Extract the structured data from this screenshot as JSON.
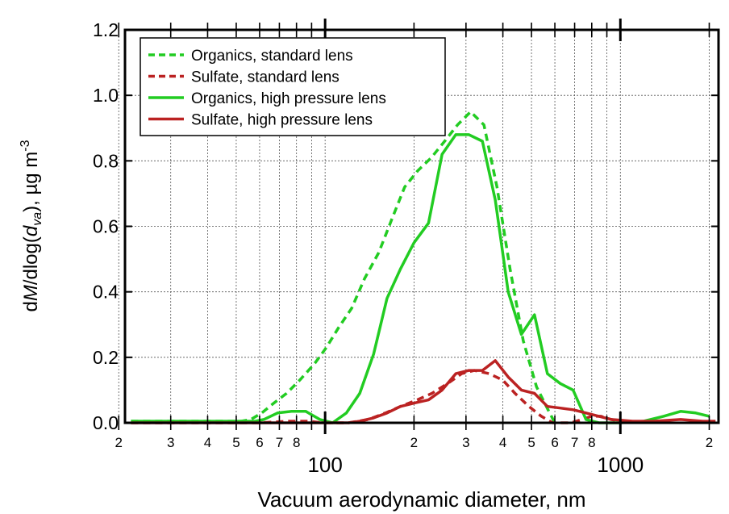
{
  "chart_data": {
    "type": "line",
    "x_scale": "log",
    "xlim": [
      21,
      2150
    ],
    "ylim": [
      0,
      1.2
    ],
    "grid": true,
    "legend_position": "top-left",
    "xlabel": "Vacuum aerodynamic diameter, nm",
    "ylabel": {
      "d1": "d",
      "M": "M",
      "mid": "/dlog(",
      "d2": "d",
      "sub": "va",
      "close": "), µg m",
      "sup": "-3"
    },
    "y_ticks": [
      {
        "value": 0.0,
        "label": "0.0"
      },
      {
        "value": 0.2,
        "label": "0.2"
      },
      {
        "value": 0.4,
        "label": "0.4"
      },
      {
        "value": 0.6,
        "label": "0.6"
      },
      {
        "value": 0.8,
        "label": "0.8"
      },
      {
        "value": 1.0,
        "label": "1.0"
      },
      {
        "value": 1.2,
        "label": "1.2"
      }
    ],
    "x_major_ticks": [
      {
        "value": 100,
        "label": "100"
      },
      {
        "value": 1000,
        "label": "1000"
      }
    ],
    "x_minor_ticks": [
      {
        "value": 20,
        "label": "2"
      },
      {
        "value": 30,
        "label": "3"
      },
      {
        "value": 40,
        "label": "4"
      },
      {
        "value": 50,
        "label": "5"
      },
      {
        "value": 60,
        "label": "6"
      },
      {
        "value": 70,
        "label": "7"
      },
      {
        "value": 80,
        "label": "8"
      },
      {
        "value": 200,
        "label": "2"
      },
      {
        "value": 300,
        "label": "3"
      },
      {
        "value": 400,
        "label": "4"
      },
      {
        "value": 500,
        "label": "5"
      },
      {
        "value": 600,
        "label": "6"
      },
      {
        "value": 700,
        "label": "7"
      },
      {
        "value": 800,
        "label": "8"
      },
      {
        "value": 2000,
        "label": "2"
      }
    ],
    "x_unlabeled_ticks": [
      90,
      900
    ],
    "series": [
      {
        "name": "Organics, standard lens",
        "color": "#22cc22",
        "style": "dashed",
        "points": [
          [
            22,
            0.005
          ],
          [
            28,
            0.005
          ],
          [
            35,
            0.005
          ],
          [
            44,
            0.005
          ],
          [
            52,
            0.005
          ],
          [
            56,
            0.01
          ],
          [
            61,
            0.03
          ],
          [
            67,
            0.06
          ],
          [
            74,
            0.09
          ],
          [
            82,
            0.13
          ],
          [
            92,
            0.18
          ],
          [
            101,
            0.23
          ],
          [
            111,
            0.29
          ],
          [
            123,
            0.35
          ],
          [
            136,
            0.44
          ],
          [
            152,
            0.52
          ],
          [
            168,
            0.62
          ],
          [
            186,
            0.72
          ],
          [
            206,
            0.77
          ],
          [
            229,
            0.81
          ],
          [
            254,
            0.86
          ],
          [
            281,
            0.91
          ],
          [
            311,
            0.95
          ],
          [
            345,
            0.91
          ],
          [
            382,
            0.72
          ],
          [
            423,
            0.47
          ],
          [
            469,
            0.25
          ],
          [
            520,
            0.11
          ],
          [
            576,
            0.03
          ],
          [
            600,
            0.0
          ]
        ]
      },
      {
        "name": "Sulfate, standard lens",
        "color": "#bb2222",
        "style": "dashed",
        "points": [
          [
            22,
            0.0
          ],
          [
            40,
            0.0
          ],
          [
            60,
            0.0
          ],
          [
            75,
            0.005
          ],
          [
            88,
            0.005
          ],
          [
            98,
            0.0
          ],
          [
            120,
            0.0
          ],
          [
            140,
            0.01
          ],
          [
            160,
            0.03
          ],
          [
            180,
            0.05
          ],
          [
            205,
            0.07
          ],
          [
            230,
            0.09
          ],
          [
            260,
            0.12
          ],
          [
            290,
            0.15
          ],
          [
            320,
            0.16
          ],
          [
            360,
            0.15
          ],
          [
            400,
            0.13
          ],
          [
            440,
            0.09
          ],
          [
            490,
            0.05
          ],
          [
            540,
            0.02
          ],
          [
            590,
            0.0
          ],
          [
            680,
            0.0
          ],
          [
            740,
            0.01
          ],
          [
            800,
            0.02
          ],
          [
            860,
            0.02
          ],
          [
            930,
            0.01
          ],
          [
            1000,
            0.005
          ]
        ]
      },
      {
        "name": "Organics, high pressure lens",
        "color": "#22cc22",
        "style": "solid",
        "points": [
          [
            22,
            0.005
          ],
          [
            30,
            0.005
          ],
          [
            40,
            0.005
          ],
          [
            50,
            0.005
          ],
          [
            58,
            0.005
          ],
          [
            62,
            0.01
          ],
          [
            69,
            0.03
          ],
          [
            77,
            0.035
          ],
          [
            86,
            0.035
          ],
          [
            96,
            0.01
          ],
          [
            106,
            0.0
          ],
          [
            118,
            0.03
          ],
          [
            131,
            0.09
          ],
          [
            146,
            0.21
          ],
          [
            162,
            0.38
          ],
          [
            180,
            0.47
          ],
          [
            200,
            0.55
          ],
          [
            224,
            0.61
          ],
          [
            249,
            0.82
          ],
          [
            277,
            0.88
          ],
          [
            307,
            0.88
          ],
          [
            341,
            0.86
          ],
          [
            377,
            0.68
          ],
          [
            417,
            0.4
          ],
          [
            462,
            0.27
          ],
          [
            512,
            0.33
          ],
          [
            566,
            0.15
          ],
          [
            626,
            0.12
          ],
          [
            692,
            0.1
          ],
          [
            765,
            0.01
          ],
          [
            846,
            0.0
          ],
          [
            1000,
            0.0
          ],
          [
            1200,
            0.005
          ],
          [
            1400,
            0.02
          ],
          [
            1600,
            0.035
          ],
          [
            1800,
            0.03
          ],
          [
            2000,
            0.02
          ]
        ]
      },
      {
        "name": "Sulfate, high pressure lens",
        "color": "#bb2222",
        "style": "solid",
        "points": [
          [
            22,
            0.0
          ],
          [
            40,
            0.0
          ],
          [
            60,
            0.0
          ],
          [
            80,
            0.0
          ],
          [
            100,
            0.0
          ],
          [
            120,
            0.0
          ],
          [
            131,
            0.005
          ],
          [
            146,
            0.015
          ],
          [
            162,
            0.03
          ],
          [
            180,
            0.05
          ],
          [
            200,
            0.06
          ],
          [
            224,
            0.07
          ],
          [
            249,
            0.1
          ],
          [
            277,
            0.15
          ],
          [
            307,
            0.16
          ],
          [
            341,
            0.16
          ],
          [
            377,
            0.19
          ],
          [
            417,
            0.14
          ],
          [
            462,
            0.1
          ],
          [
            512,
            0.09
          ],
          [
            566,
            0.05
          ],
          [
            626,
            0.045
          ],
          [
            692,
            0.04
          ],
          [
            765,
            0.03
          ],
          [
            846,
            0.02
          ],
          [
            935,
            0.01
          ],
          [
            1100,
            0.005
          ],
          [
            1300,
            0.005
          ],
          [
            1600,
            0.01
          ],
          [
            1900,
            0.005
          ],
          [
            2100,
            0.005
          ]
        ]
      }
    ]
  }
}
